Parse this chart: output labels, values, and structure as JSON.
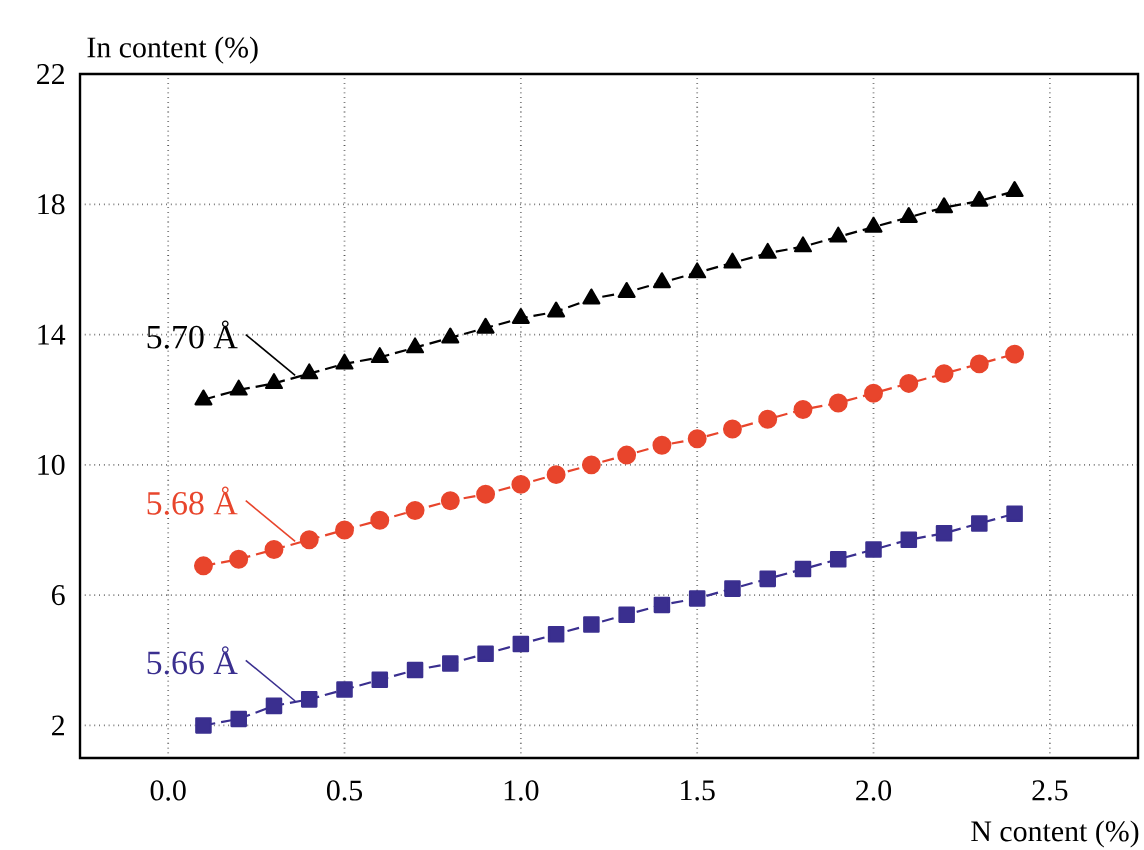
{
  "chart_data": {
    "type": "line",
    "xlabel": "N content (%)",
    "ylabel": "In content (%)",
    "x": [
      0.1,
      0.2,
      0.3,
      0.4,
      0.5,
      0.6,
      0.7,
      0.8,
      0.9,
      1.0,
      1.1,
      1.2,
      1.3,
      1.4,
      1.5,
      1.6,
      1.7,
      1.8,
      1.9,
      2.0,
      2.1,
      2.2,
      2.3,
      2.4
    ],
    "series": [
      {
        "name": "5.70 Å",
        "color": "#000000",
        "marker": "triangle",
        "values": [
          12.0,
          12.3,
          12.5,
          12.8,
          13.1,
          13.3,
          13.6,
          13.9,
          14.2,
          14.5,
          14.7,
          15.1,
          15.3,
          15.6,
          15.9,
          16.2,
          16.5,
          16.7,
          17.0,
          17.3,
          17.6,
          17.9,
          18.1,
          18.4
        ]
      },
      {
        "name": "5.68 Å",
        "color": "#e8452c",
        "marker": "circle",
        "values": [
          6.9,
          7.1,
          7.4,
          7.7,
          8.0,
          8.3,
          8.6,
          8.9,
          9.1,
          9.4,
          9.7,
          10.0,
          10.3,
          10.6,
          10.8,
          11.1,
          11.4,
          11.7,
          11.9,
          12.2,
          12.5,
          12.8,
          13.1,
          13.4
        ]
      },
      {
        "name": "5.66 Å",
        "color": "#3a2f8f",
        "marker": "square",
        "values": [
          2.0,
          2.2,
          2.6,
          2.8,
          3.1,
          3.4,
          3.7,
          3.9,
          4.2,
          4.5,
          4.8,
          5.1,
          5.4,
          5.7,
          5.9,
          6.2,
          6.5,
          6.8,
          7.1,
          7.4,
          7.7,
          7.9,
          8.2,
          8.5
        ]
      }
    ],
    "xlim": [
      -0.25,
      2.75
    ],
    "xticks": [
      {
        "value": 0,
        "label": "0.0"
      },
      0.5,
      {
        "value": 1,
        "label": "1.0"
      },
      1.5,
      {
        "value": 2,
        "label": "2.0"
      },
      2.5
    ],
    "ylim": [
      1,
      22
    ],
    "yticks": [
      2,
      6,
      10,
      14,
      18,
      22
    ],
    "grid": true,
    "line_style": "dashed",
    "legend": "left"
  }
}
